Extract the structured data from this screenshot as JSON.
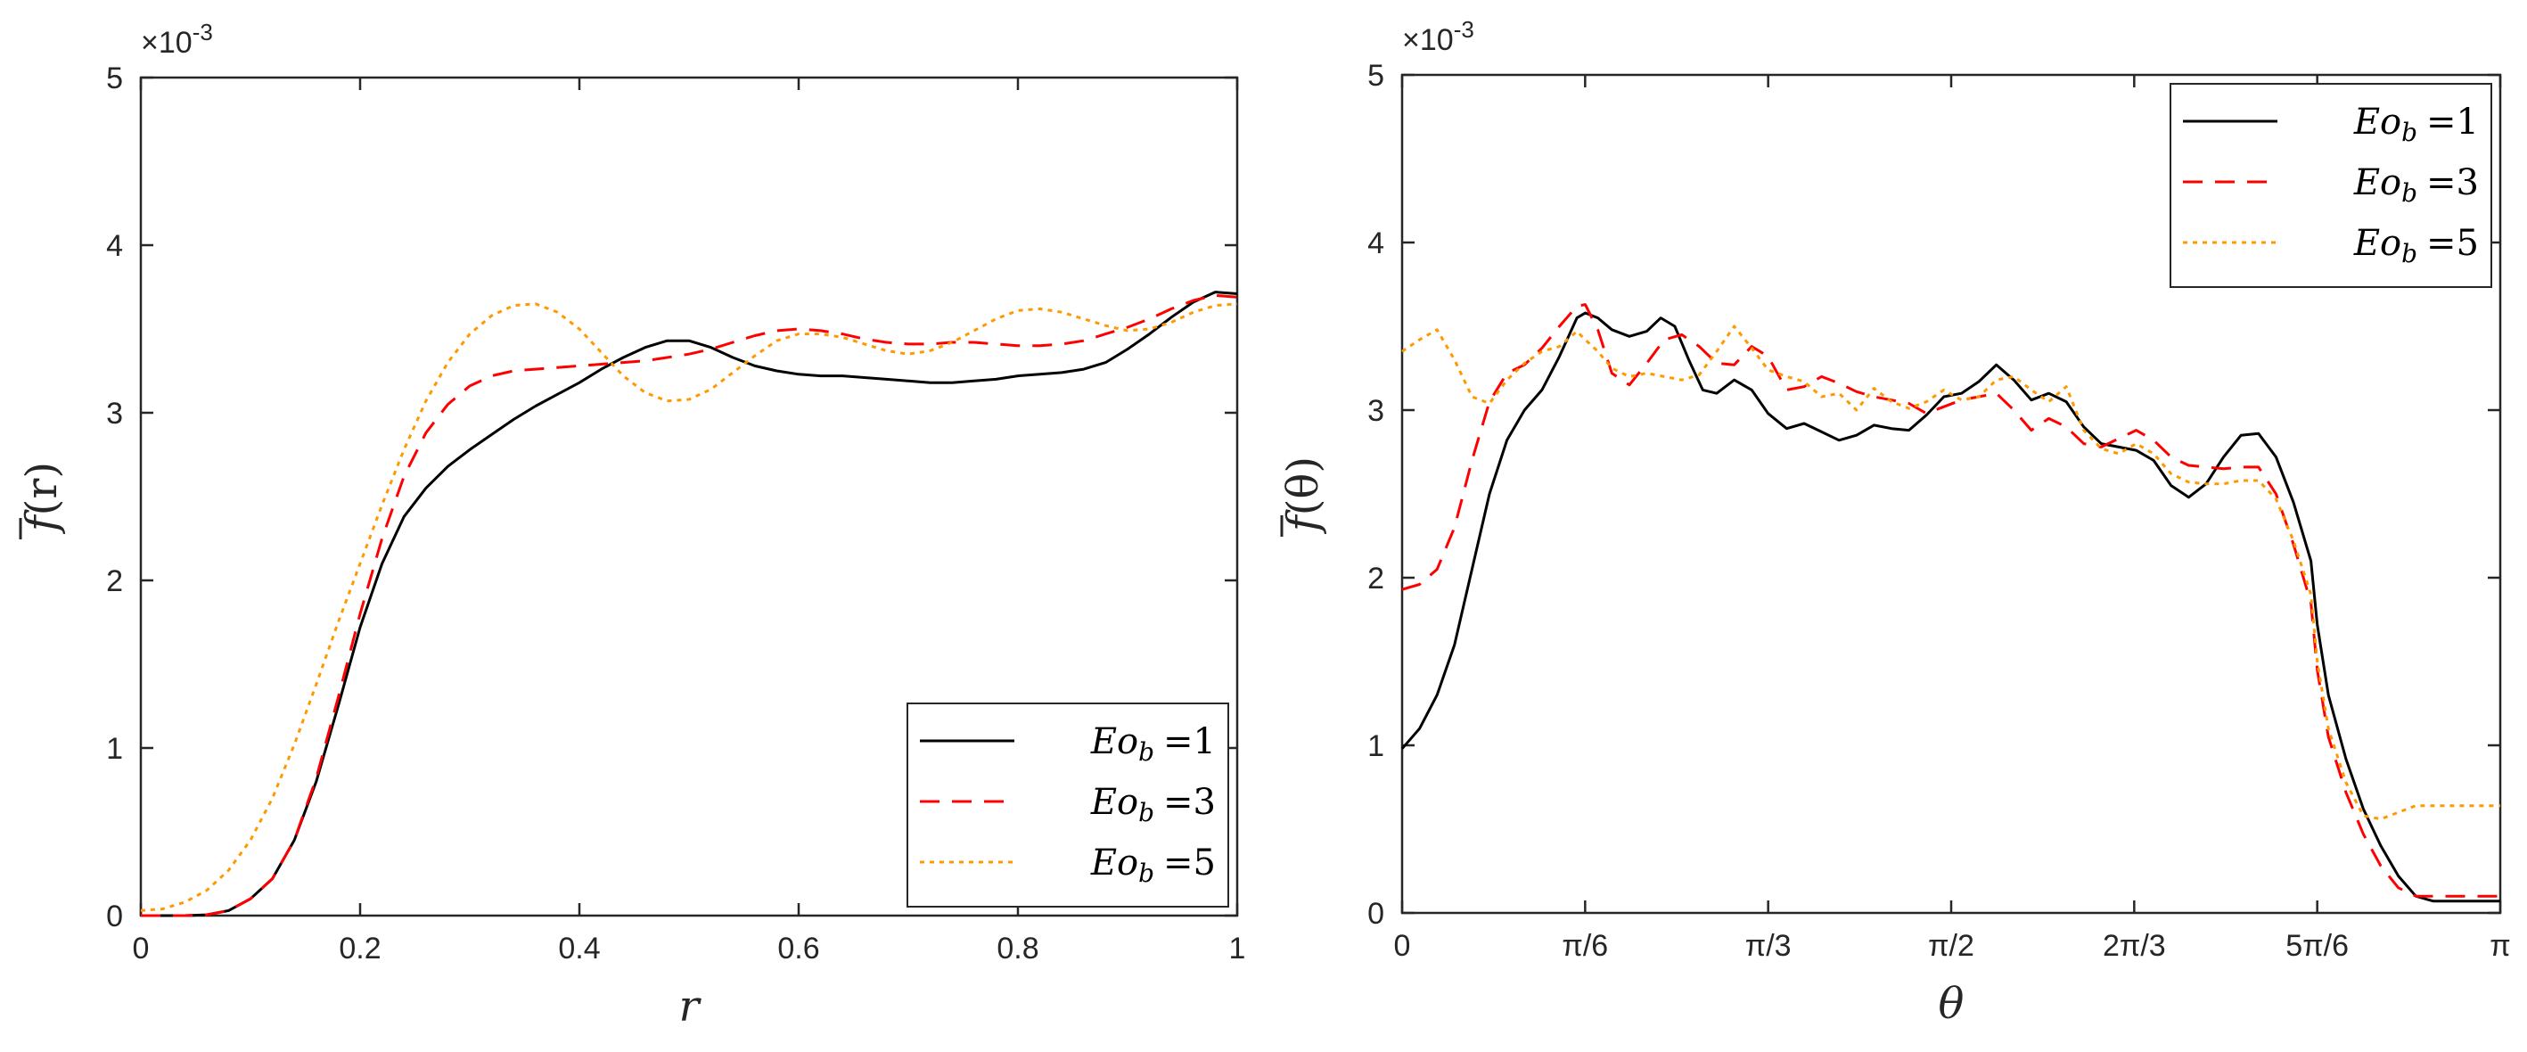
{
  "colors": {
    "eo1": "#000000",
    "eo3": "#ff0000",
    "eo5": "#ff9900",
    "axis": "#262626"
  },
  "chart_data": [
    {
      "type": "line",
      "xlabel": "r",
      "ylabel": "f(r)",
      "ylabel_main": "f",
      "ylabel_arg": "(r)",
      "exponent_label": "×10",
      "exponent_power": "-3",
      "xlim": [
        0,
        1
      ],
      "ylim": [
        0,
        5
      ],
      "xticks": [
        0,
        0.2,
        0.4,
        0.6,
        0.8,
        1
      ],
      "xtick_labels": [
        "0",
        "0.2",
        "0.4",
        "0.6",
        "0.8",
        "1"
      ],
      "yticks": [
        0,
        1,
        2,
        3,
        4,
        5
      ],
      "ytick_labels": [
        "0",
        "1",
        "2",
        "3",
        "4",
        "5"
      ],
      "legend_position": "bottom-right",
      "legend": [
        {
          "var": "Eo",
          "sub": "b",
          "val": "=1"
        },
        {
          "var": "Eo",
          "sub": "b",
          "val": "=3"
        },
        {
          "var": "Eo",
          "sub": "b",
          "val": "=5"
        }
      ],
      "series": [
        {
          "name": "Eo_b =1",
          "style": "solid",
          "x": [
            0,
            0.04,
            0.06,
            0.08,
            0.1,
            0.12,
            0.14,
            0.16,
            0.18,
            0.2,
            0.22,
            0.24,
            0.26,
            0.28,
            0.3,
            0.32,
            0.34,
            0.36,
            0.38,
            0.4,
            0.42,
            0.44,
            0.46,
            0.48,
            0.5,
            0.52,
            0.54,
            0.56,
            0.58,
            0.6,
            0.62,
            0.64,
            0.66,
            0.68,
            0.7,
            0.72,
            0.74,
            0.76,
            0.78,
            0.8,
            0.82,
            0.84,
            0.86,
            0.88,
            0.9,
            0.92,
            0.94,
            0.96,
            0.98,
            1
          ],
          "y": [
            0,
            0,
            0.005,
            0.03,
            0.1,
            0.22,
            0.45,
            0.8,
            1.25,
            1.72,
            2.1,
            2.38,
            2.55,
            2.68,
            2.78,
            2.87,
            2.96,
            3.04,
            3.11,
            3.18,
            3.26,
            3.33,
            3.39,
            3.43,
            3.43,
            3.39,
            3.33,
            3.28,
            3.25,
            3.23,
            3.22,
            3.22,
            3.21,
            3.2,
            3.19,
            3.18,
            3.18,
            3.19,
            3.2,
            3.22,
            3.23,
            3.24,
            3.26,
            3.3,
            3.38,
            3.47,
            3.57,
            3.66,
            3.72,
            3.71
          ]
        },
        {
          "name": "Eo_b =3",
          "style": "dashed",
          "x": [
            0,
            0.04,
            0.06,
            0.08,
            0.1,
            0.12,
            0.14,
            0.16,
            0.18,
            0.2,
            0.22,
            0.24,
            0.26,
            0.28,
            0.3,
            0.32,
            0.34,
            0.36,
            0.38,
            0.4,
            0.42,
            0.44,
            0.46,
            0.48,
            0.5,
            0.52,
            0.54,
            0.56,
            0.58,
            0.6,
            0.62,
            0.64,
            0.66,
            0.68,
            0.7,
            0.72,
            0.74,
            0.76,
            0.78,
            0.8,
            0.82,
            0.84,
            0.86,
            0.88,
            0.9,
            0.92,
            0.94,
            0.96,
            0.98,
            1
          ],
          "y": [
            0,
            0,
            0.005,
            0.03,
            0.1,
            0.22,
            0.45,
            0.82,
            1.3,
            1.8,
            2.25,
            2.62,
            2.88,
            3.05,
            3.16,
            3.22,
            3.25,
            3.26,
            3.27,
            3.28,
            3.29,
            3.3,
            3.31,
            3.33,
            3.35,
            3.38,
            3.42,
            3.46,
            3.49,
            3.5,
            3.49,
            3.47,
            3.44,
            3.42,
            3.41,
            3.41,
            3.42,
            3.42,
            3.41,
            3.4,
            3.4,
            3.41,
            3.43,
            3.47,
            3.51,
            3.56,
            3.62,
            3.67,
            3.7,
            3.69
          ]
        },
        {
          "name": "Eo_b =5",
          "style": "dotted",
          "x": [
            0,
            0.02,
            0.04,
            0.06,
            0.08,
            0.1,
            0.12,
            0.14,
            0.16,
            0.18,
            0.2,
            0.22,
            0.24,
            0.26,
            0.28,
            0.3,
            0.32,
            0.34,
            0.36,
            0.38,
            0.4,
            0.42,
            0.44,
            0.46,
            0.48,
            0.5,
            0.52,
            0.54,
            0.56,
            0.58,
            0.6,
            0.62,
            0.64,
            0.66,
            0.68,
            0.7,
            0.72,
            0.74,
            0.76,
            0.78,
            0.8,
            0.82,
            0.84,
            0.86,
            0.88,
            0.9,
            0.92,
            0.94,
            0.96,
            0.98,
            1
          ],
          "y": [
            0.03,
            0.04,
            0.08,
            0.15,
            0.27,
            0.45,
            0.7,
            1.02,
            1.38,
            1.75,
            2.1,
            2.45,
            2.78,
            3.07,
            3.3,
            3.47,
            3.58,
            3.64,
            3.65,
            3.6,
            3.5,
            3.36,
            3.22,
            3.12,
            3.07,
            3.08,
            3.14,
            3.24,
            3.34,
            3.43,
            3.47,
            3.47,
            3.45,
            3.41,
            3.37,
            3.35,
            3.37,
            3.42,
            3.49,
            3.56,
            3.61,
            3.62,
            3.6,
            3.56,
            3.52,
            3.49,
            3.5,
            3.54,
            3.6,
            3.64,
            3.65
          ]
        }
      ]
    },
    {
      "type": "line",
      "xlabel": "θ",
      "ylabel": "f(θ)",
      "ylabel_main": "f",
      "ylabel_arg": "(θ)",
      "exponent_label": "×10",
      "exponent_power": "-3",
      "xlim": [
        0,
        3.14159
      ],
      "ylim": [
        0,
        5
      ],
      "xticks": [
        0,
        0.5236,
        1.0472,
        1.5708,
        2.0944,
        2.618,
        3.14159
      ],
      "xtick_labels": [
        "0",
        "π/6",
        "π/3",
        "π/2",
        "2π/3",
        "5π/6",
        "π"
      ],
      "yticks": [
        0,
        1,
        2,
        3,
        4,
        5
      ],
      "ytick_labels": [
        "0",
        "1",
        "2",
        "3",
        "4",
        "5"
      ],
      "legend_position": "top-right",
      "legend": [
        {
          "var": "Eo",
          "sub": "b",
          "val": "=1"
        },
        {
          "var": "Eo",
          "sub": "b",
          "val": "=3"
        },
        {
          "var": "Eo",
          "sub": "b",
          "val": "=5"
        }
      ],
      "series": [
        {
          "name": "Eo_b =1",
          "style": "solid",
          "x": [
            0,
            0.05,
            0.1,
            0.15,
            0.2,
            0.25,
            0.3,
            0.35,
            0.4,
            0.45,
            0.5,
            0.524,
            0.56,
            0.6,
            0.65,
            0.7,
            0.74,
            0.78,
            0.82,
            0.86,
            0.9,
            0.95,
            1.0,
            1.047,
            1.1,
            1.15,
            1.2,
            1.25,
            1.3,
            1.35,
            1.4,
            1.45,
            1.5,
            1.55,
            1.6,
            1.65,
            1.7,
            1.75,
            1.8,
            1.85,
            1.9,
            1.95,
            2.0,
            2.05,
            2.1,
            2.15,
            2.2,
            2.25,
            2.3,
            2.35,
            2.4,
            2.45,
            2.5,
            2.55,
            2.6,
            2.618,
            2.65,
            2.7,
            2.75,
            2.8,
            2.85,
            2.9,
            2.95,
            3.0,
            3.05,
            3.1,
            3.1416
          ],
          "y": [
            0.98,
            1.1,
            1.3,
            1.6,
            2.05,
            2.5,
            2.82,
            3.0,
            3.12,
            3.32,
            3.55,
            3.58,
            3.55,
            3.48,
            3.44,
            3.47,
            3.55,
            3.5,
            3.3,
            3.12,
            3.1,
            3.18,
            3.12,
            2.98,
            2.89,
            2.92,
            2.87,
            2.82,
            2.85,
            2.91,
            2.89,
            2.88,
            2.97,
            3.08,
            3.1,
            3.17,
            3.27,
            3.18,
            3.06,
            3.1,
            3.05,
            2.9,
            2.8,
            2.78,
            2.76,
            2.7,
            2.55,
            2.48,
            2.56,
            2.72,
            2.85,
            2.86,
            2.72,
            2.45,
            2.1,
            1.72,
            1.3,
            0.92,
            0.62,
            0.4,
            0.22,
            0.1,
            0.07,
            0.07,
            0.07,
            0.07,
            0.07
          ]
        },
        {
          "name": "Eo_b =3",
          "style": "dashed",
          "x": [
            0,
            0.05,
            0.1,
            0.15,
            0.2,
            0.25,
            0.3,
            0.35,
            0.4,
            0.45,
            0.5,
            0.524,
            0.56,
            0.6,
            0.65,
            0.7,
            0.75,
            0.8,
            0.85,
            0.9,
            0.95,
            1.0,
            1.047,
            1.1,
            1.15,
            1.2,
            1.25,
            1.3,
            1.35,
            1.4,
            1.45,
            1.5,
            1.55,
            1.6,
            1.65,
            1.7,
            1.75,
            1.8,
            1.85,
            1.9,
            1.95,
            2.0,
            2.05,
            2.1,
            2.15,
            2.2,
            2.25,
            2.3,
            2.35,
            2.4,
            2.45,
            2.5,
            2.55,
            2.6,
            2.618,
            2.65,
            2.7,
            2.75,
            2.8,
            2.85,
            2.9,
            2.95,
            3.0,
            3.05,
            3.1,
            3.1416
          ],
          "y": [
            1.93,
            1.96,
            2.05,
            2.3,
            2.7,
            3.05,
            3.22,
            3.27,
            3.37,
            3.5,
            3.62,
            3.63,
            3.48,
            3.22,
            3.15,
            3.28,
            3.42,
            3.45,
            3.38,
            3.28,
            3.27,
            3.38,
            3.32,
            3.12,
            3.14,
            3.2,
            3.16,
            3.11,
            3.08,
            3.06,
            3.04,
            2.98,
            3.02,
            3.06,
            3.08,
            3.1,
            3.0,
            2.88,
            2.95,
            2.9,
            2.8,
            2.78,
            2.83,
            2.88,
            2.82,
            2.72,
            2.67,
            2.66,
            2.65,
            2.66,
            2.66,
            2.5,
            2.2,
            1.85,
            1.45,
            1.05,
            0.72,
            0.47,
            0.28,
            0.15,
            0.1,
            0.1,
            0.1,
            0.1,
            0.1,
            0.1
          ]
        },
        {
          "name": "Eo_b =5",
          "style": "dotted",
          "x": [
            0,
            0.05,
            0.1,
            0.15,
            0.2,
            0.25,
            0.3,
            0.35,
            0.4,
            0.45,
            0.5,
            0.524,
            0.56,
            0.6,
            0.65,
            0.7,
            0.75,
            0.8,
            0.85,
            0.9,
            0.95,
            1.0,
            1.047,
            1.1,
            1.15,
            1.2,
            1.25,
            1.3,
            1.35,
            1.4,
            1.45,
            1.5,
            1.55,
            1.6,
            1.65,
            1.7,
            1.75,
            1.8,
            1.85,
            1.9,
            1.95,
            2.0,
            2.05,
            2.1,
            2.15,
            2.2,
            2.25,
            2.3,
            2.35,
            2.4,
            2.45,
            2.5,
            2.55,
            2.6,
            2.618,
            2.65,
            2.7,
            2.75,
            2.8,
            2.85,
            2.9,
            2.95,
            3.0,
            3.05,
            3.1,
            3.1416
          ],
          "y": [
            3.35,
            3.42,
            3.48,
            3.3,
            3.08,
            3.04,
            3.18,
            3.28,
            3.35,
            3.38,
            3.47,
            3.42,
            3.35,
            3.25,
            3.2,
            3.22,
            3.2,
            3.18,
            3.21,
            3.35,
            3.5,
            3.37,
            3.24,
            3.2,
            3.17,
            3.08,
            3.1,
            3.0,
            3.13,
            3.05,
            3.01,
            3.05,
            3.12,
            3.06,
            3.08,
            3.18,
            3.2,
            3.12,
            3.05,
            3.14,
            2.88,
            2.77,
            2.74,
            2.8,
            2.74,
            2.62,
            2.57,
            2.56,
            2.56,
            2.58,
            2.58,
            2.47,
            2.22,
            1.9,
            1.5,
            1.1,
            0.78,
            0.58,
            0.56,
            0.6,
            0.64,
            0.64,
            0.64,
            0.64,
            0.64,
            0.64
          ]
        }
      ]
    }
  ]
}
